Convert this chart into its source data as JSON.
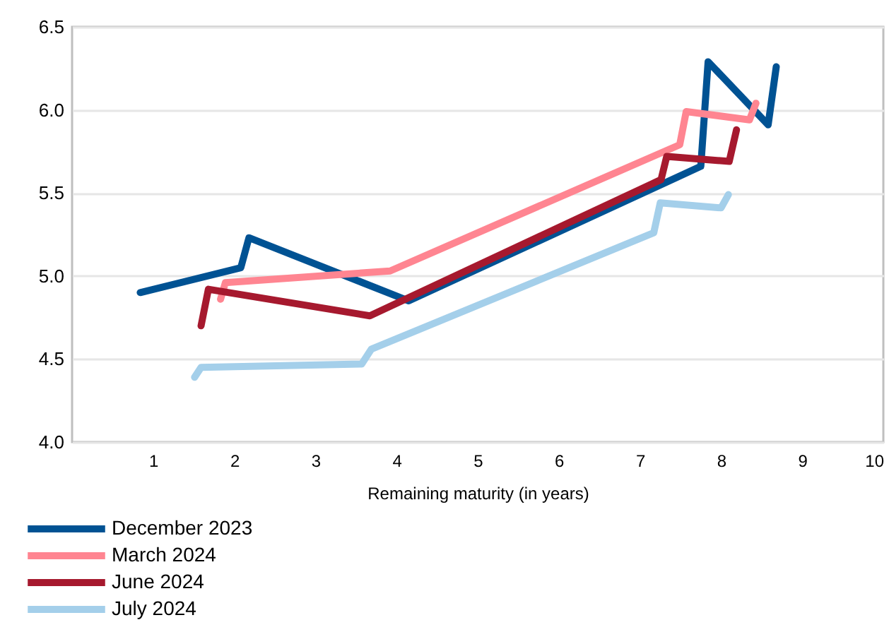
{
  "chart_data": {
    "type": "line",
    "xlabel": "Remaining maturity (in years)",
    "xlim": [
      0,
      10
    ],
    "xticks": [
      1,
      2,
      3,
      4,
      5,
      6,
      7,
      8,
      9,
      10
    ],
    "ylim": [
      4.0,
      6.5
    ],
    "yticks": [
      {
        "value": 4,
        "label": "4.0"
      },
      {
        "value": 4.5,
        "label": "4.5"
      },
      {
        "value": 5,
        "label": "5.0"
      },
      {
        "value": 5.5,
        "label": "5.5"
      },
      {
        "value": 6,
        "label": "6.0"
      },
      {
        "value": 6.5,
        "label": "6.5"
      }
    ],
    "grid": "y",
    "legend": "bottom",
    "line_style": "solid",
    "series": [
      {
        "name": "December 2023",
        "color": "#005293",
        "x": [
          0.84,
          2.08,
          2.18,
          4.15,
          7.75,
          7.84,
          8.58,
          8.68
        ],
        "values": [
          4.9,
          5.05,
          5.23,
          4.85,
          5.66,
          6.29,
          5.91,
          6.26
        ]
      },
      {
        "name": "March 2024",
        "color": "#ff8591",
        "x": [
          1.83,
          1.89,
          3.92,
          7.49,
          7.57,
          8.35,
          8.43
        ],
        "values": [
          4.86,
          4.96,
          5.03,
          5.79,
          5.99,
          5.94,
          6.04
        ]
      },
      {
        "name": "June 2024",
        "color": "#a6192e",
        "x": [
          1.59,
          1.68,
          3.67,
          7.26,
          7.33,
          8.1,
          8.19
        ],
        "values": [
          4.7,
          4.92,
          4.76,
          5.58,
          5.72,
          5.69,
          5.88
        ]
      },
      {
        "name": "July 2024",
        "color": "#a4cfea",
        "x": [
          1.51,
          1.59,
          3.57,
          3.69,
          7.17,
          7.25,
          8.0,
          8.09
        ],
        "values": [
          4.39,
          4.45,
          4.47,
          4.56,
          5.26,
          5.44,
          5.41,
          5.49
        ]
      }
    ]
  }
}
